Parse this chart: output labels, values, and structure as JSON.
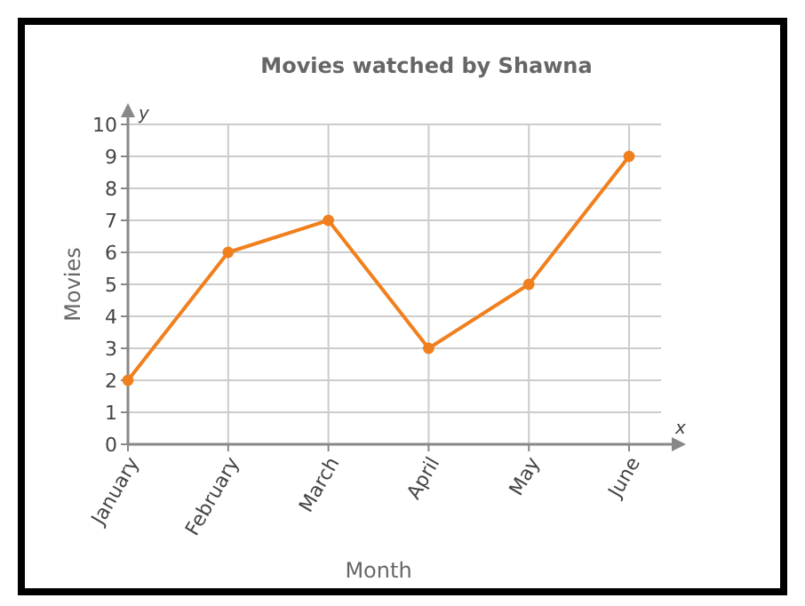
{
  "chart_data": {
    "type": "line",
    "title": "Movies watched by Shawna",
    "xlabel": "Month",
    "ylabel": "Movies",
    "categories": [
      "January",
      "February",
      "March",
      "April",
      "May",
      "June"
    ],
    "series": [
      {
        "color": "#f0801e",
        "values": [
          2,
          6,
          7,
          3,
          5,
          9
        ]
      }
    ],
    "ylim": [
      0,
      10
    ],
    "yticks": [
      0,
      1,
      2,
      3,
      4,
      5,
      6,
      7,
      8,
      9,
      10
    ],
    "grid": true,
    "marker": "circle",
    "line_style": "solid",
    "annotations": [
      "x",
      "y"
    ]
  }
}
